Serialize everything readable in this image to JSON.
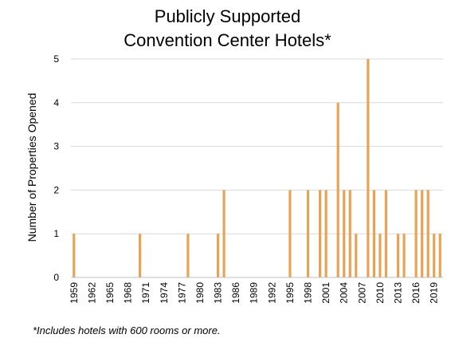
{
  "chart_data": {
    "type": "bar",
    "title": [
      "Publicly Supported",
      "Convention Center Hotels*"
    ],
    "ylabel": "Number of Properties Opened",
    "xlabel": "",
    "ylim": [
      0,
      5
    ],
    "yticks": [
      0,
      1,
      2,
      3,
      4,
      5
    ],
    "grid": true,
    "legend": "none",
    "bar_color": "#E8A254",
    "grid_color": "#D9D9D9",
    "years": [
      1959,
      1960,
      1961,
      1962,
      1963,
      1964,
      1965,
      1966,
      1967,
      1968,
      1969,
      1970,
      1971,
      1972,
      1973,
      1974,
      1975,
      1976,
      1977,
      1978,
      1979,
      1980,
      1981,
      1982,
      1983,
      1984,
      1985,
      1986,
      1987,
      1988,
      1989,
      1990,
      1991,
      1992,
      1993,
      1994,
      1995,
      1996,
      1997,
      1998,
      1999,
      2000,
      2001,
      2002,
      2003,
      2004,
      2005,
      2006,
      2007,
      2008,
      2009,
      2010,
      2011,
      2012,
      2013,
      2014,
      2015,
      2016,
      2017,
      2018,
      2019,
      2020
    ],
    "values": [
      1,
      0,
      0,
      0,
      0,
      0,
      0,
      0,
      0,
      0,
      0,
      1,
      0,
      0,
      0,
      0,
      0,
      0,
      0,
      1,
      0,
      0,
      0,
      0,
      1,
      2,
      0,
      0,
      0,
      0,
      0,
      0,
      0,
      0,
      0,
      0,
      2,
      0,
      0,
      2,
      0,
      2,
      2,
      0,
      4,
      2,
      2,
      1,
      0,
      5,
      2,
      1,
      2,
      0,
      1,
      1,
      0,
      2,
      2,
      2,
      1,
      1
    ],
    "tick_labels": [
      "1959",
      "1962",
      "1965",
      "1968",
      "1971",
      "1974",
      "1977",
      "1980",
      "1983",
      "1986",
      "1989",
      "1992",
      "1995",
      "1998",
      "2001",
      "2004",
      "2007",
      "2010",
      "2013",
      "2016",
      "2019"
    ]
  },
  "footnote": "*Includes hotels with 600 rooms or more."
}
